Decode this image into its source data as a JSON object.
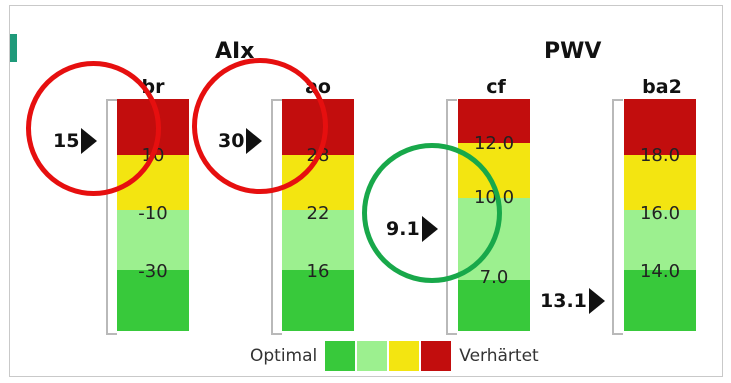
{
  "titles": {
    "aix": "AIx",
    "pwv": "PWV"
  },
  "columns": [
    {
      "key": "br",
      "label": "br",
      "ticks": [
        "10",
        "-10",
        "-30"
      ],
      "marker": "15"
    },
    {
      "key": "ao",
      "label": "ao",
      "ticks": [
        "28",
        "22",
        "16"
      ],
      "marker": "30"
    },
    {
      "key": "cf",
      "label": "cf",
      "ticks": [
        "12.0",
        "10.0",
        "7.0"
      ],
      "marker": "9.1"
    },
    {
      "key": "ba2",
      "label": "ba2",
      "ticks": [
        "18.0",
        "16.0",
        "14.0"
      ],
      "marker": "13.1"
    }
  ],
  "legend": {
    "left": "Optimal",
    "right": "Verhärtet"
  },
  "colors": {
    "hardened": "#c20d0d",
    "elevated": "#f3e511",
    "normal": "#9cf08f",
    "optimal": "#38c93b",
    "highlight_bad": "#e60f0f",
    "highlight_good": "#18a84a"
  }
}
